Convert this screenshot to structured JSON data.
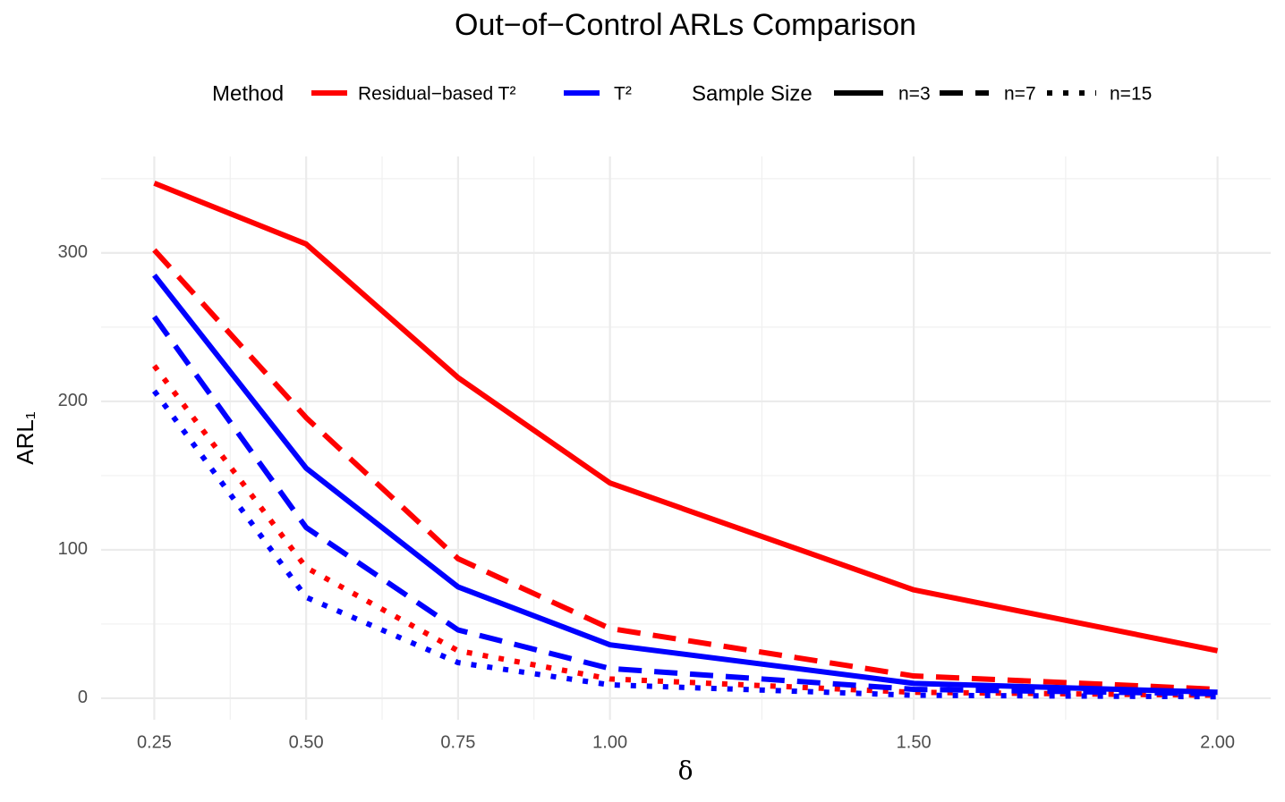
{
  "chart_data": {
    "type": "line",
    "title": "Out−of−Control ARLs Comparison",
    "x_label": "δ",
    "y_label": "ARL₁",
    "x": [
      0.25,
      0.5,
      0.75,
      1.0,
      1.5,
      2.0
    ],
    "xticks": [
      {
        "value": 0.25,
        "label": "0.25"
      },
      {
        "value": 0.5,
        "label": "0.50"
      },
      {
        "value": 0.75,
        "label": "0.75"
      },
      {
        "value": 1.0,
        "label": "1.00"
      },
      {
        "value": 1.5,
        "label": "1.50"
      },
      {
        "value": 2.0,
        "label": "2.00"
      }
    ],
    "x_minor_ticks": [
      0.375,
      0.625,
      0.875,
      1.25,
      1.75
    ],
    "xlim": [
      0.1625,
      2.0875
    ],
    "yticks": [
      0,
      100,
      200,
      300
    ],
    "y_minor_ticks": [
      50,
      150,
      250,
      350
    ],
    "ylim": [
      -14.5,
      365
    ],
    "grid": true,
    "legend_position": "top",
    "legend_title": "Method",
    "series": [
      {
        "name": "Residual−based T²",
        "color": "#ff0000",
        "values": [
          [
            347,
            306,
            216,
            145,
            73,
            32
          ],
          [
            302,
            189,
            94,
            47,
            15,
            6
          ],
          [
            224,
            88,
            32,
            13,
            4,
            2
          ]
        ]
      },
      {
        "name": "T²",
        "color": "#0000ff",
        "values": [
          [
            285,
            155,
            75,
            36,
            10,
            4
          ],
          [
            257,
            115,
            46,
            20,
            6,
            3
          ],
          [
            207,
            68,
            24,
            9,
            2,
            1
          ]
        ]
      }
    ],
    "linetypes": {
      "title": "Sample Size",
      "names": [
        "n=3",
        "n=7",
        "n=15"
      ],
      "dashes": [
        "solid",
        "dashed",
        "dotted"
      ]
    }
  }
}
